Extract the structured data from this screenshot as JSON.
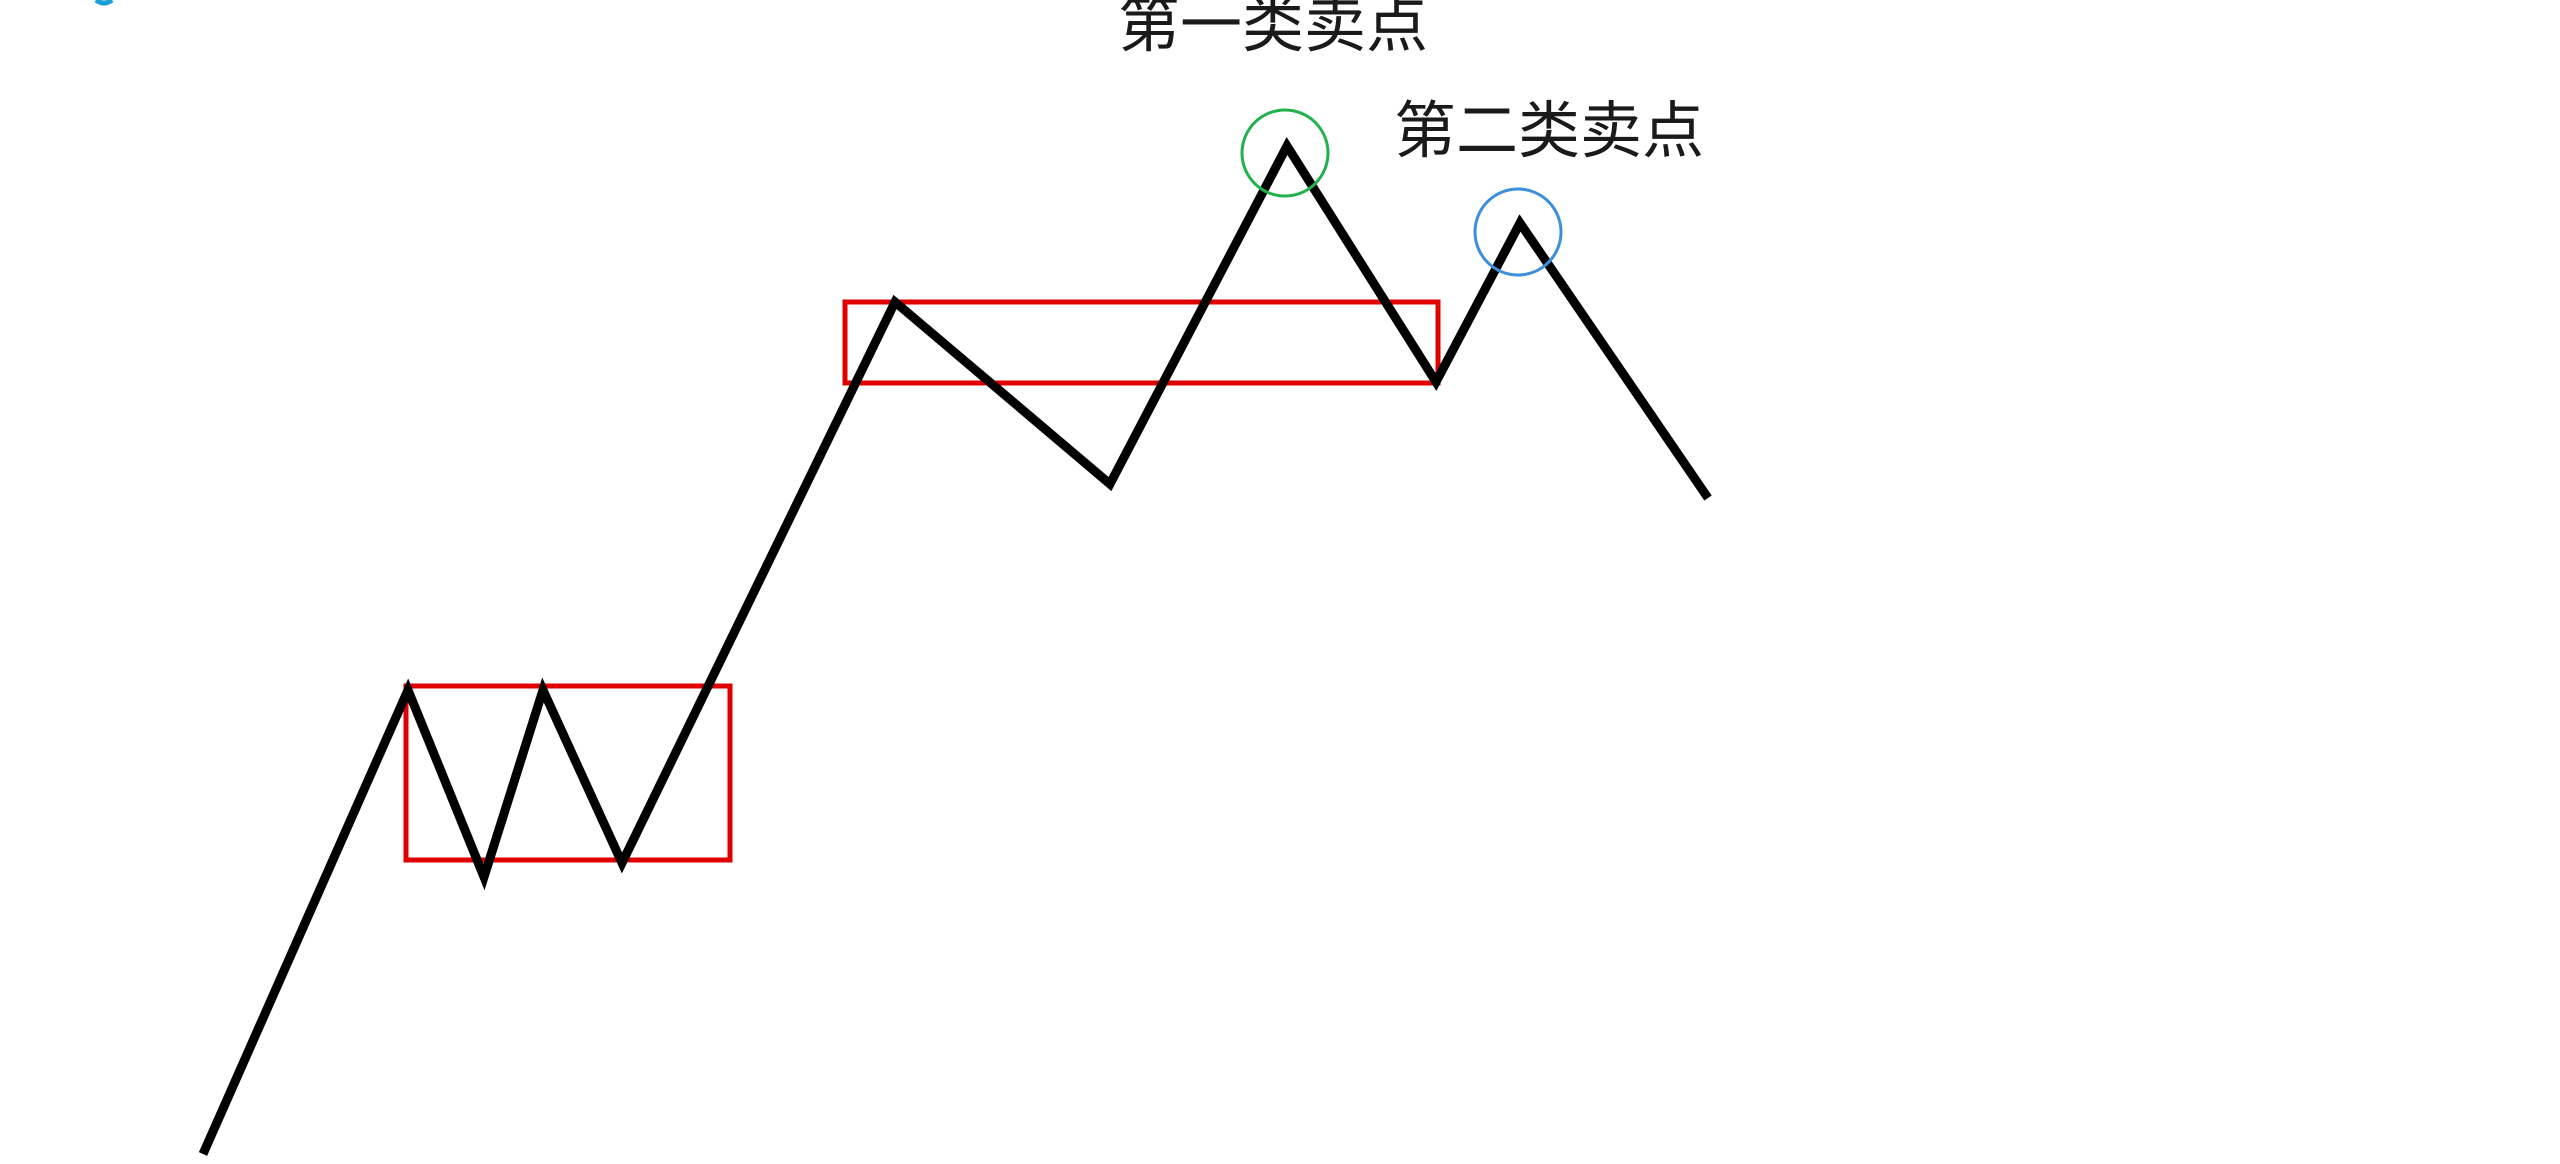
{
  "labels": {
    "first_sell_point": "第一类卖点",
    "second_sell_point": "第二类卖点"
  },
  "colors": {
    "price_line": "#000000",
    "pivot_box": "#e00000",
    "first_sell_circle": "#22b14c",
    "second_sell_circle": "#3b8fdc",
    "background": "#ffffff",
    "corner_mark": "#1ca0d8"
  }
}
